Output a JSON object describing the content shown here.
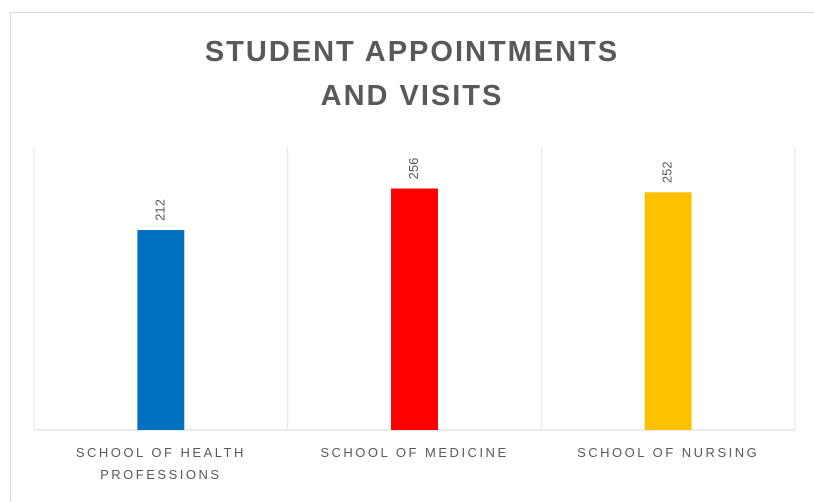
{
  "chart_data": {
    "type": "bar",
    "title": "STUDENT APPOINTMENTS AND VISITS",
    "categories": [
      "SCHOOL OF HEALTH PROFESSIONS",
      "SCHOOL OF MEDICINE",
      "SCHOOL OF NURSING"
    ],
    "values": [
      212,
      256,
      252
    ],
    "colors": [
      "#0070c0",
      "#ff0000",
      "#ffc000"
    ],
    "ylim": [
      0,
      300
    ]
  }
}
